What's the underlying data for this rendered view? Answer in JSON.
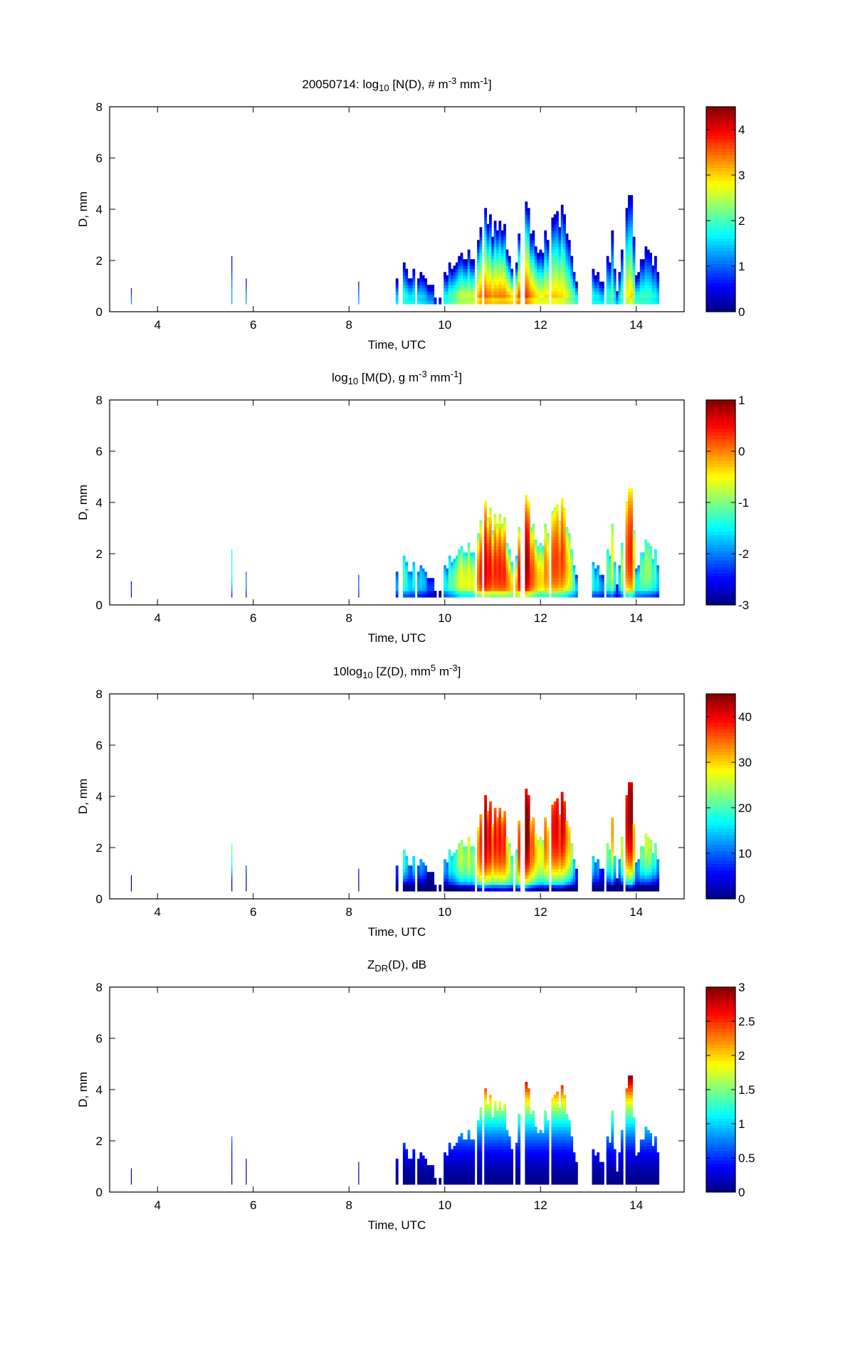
{
  "chart_data": {
    "type": "heatmap",
    "xlim": [
      3,
      15
    ],
    "ylim": [
      0,
      8
    ],
    "xticks": [
      4,
      6,
      8,
      10,
      12,
      14
    ],
    "yticks": [
      0,
      2,
      4,
      6,
      8
    ],
    "xlabel": "Time, UTC",
    "ylabel": "D, mm",
    "grid": false,
    "colormap": "jet",
    "colorbar_placement": "right",
    "panels": [
      {
        "field": "logN",
        "title": [
          {
            "t": "20050714: log",
            "s": ""
          },
          {
            "t": "10",
            "s": "sub"
          },
          {
            "t": " [N(D), # m",
            "s": ""
          },
          {
            "t": "-3",
            "s": "sup"
          },
          {
            "t": " mm",
            "s": ""
          },
          {
            "t": "-1",
            "s": "sup"
          },
          {
            "t": "]",
            "s": ""
          }
        ],
        "clim": [
          0,
          4.5
        ],
        "cticks": [
          "0",
          "1",
          "2",
          "3",
          "4"
        ]
      },
      {
        "field": "logM",
        "title": [
          {
            "t": "log",
            "s": ""
          },
          {
            "t": "10",
            "s": "sub"
          },
          {
            "t": " [M(D), g m",
            "s": ""
          },
          {
            "t": "-3",
            "s": "sup"
          },
          {
            "t": " mm",
            "s": ""
          },
          {
            "t": "-1",
            "s": "sup"
          },
          {
            "t": "]",
            "s": ""
          }
        ],
        "clim": [
          -3,
          1
        ],
        "cticks": [
          "-3",
          "-2",
          "-1",
          "0",
          "1"
        ]
      },
      {
        "field": "Z",
        "title": [
          {
            "t": "10log",
            "s": ""
          },
          {
            "t": "10",
            "s": "sub"
          },
          {
            "t": " [Z(D),  mm",
            "s": ""
          },
          {
            "t": "5",
            "s": "sup"
          },
          {
            "t": " m",
            "s": ""
          },
          {
            "t": "-3",
            "s": "sup"
          },
          {
            "t": "]",
            "s": ""
          }
        ],
        "clim": [
          0,
          45
        ],
        "cticks": [
          "0",
          "10",
          "20",
          "30",
          "40"
        ]
      },
      {
        "field": "ZDR",
        "title": [
          {
            "t": "Z",
            "s": ""
          },
          {
            "t": "DR",
            "s": "sub"
          },
          {
            "t": "(D), dB",
            "s": ""
          }
        ],
        "clim": [
          0,
          3
        ],
        "cticks": [
          "0",
          "0.5",
          "1",
          "1.5",
          "2",
          "2.5",
          "3"
        ]
      }
    ],
    "envelope_note_units": "time UTC h, max diameter mm, peak log10 N",
    "envelope": [
      [
        9.0,
        1.5,
        1.8
      ],
      [
        9.05,
        2.5,
        2.2
      ],
      [
        9.2,
        1.5,
        2.0
      ],
      [
        9.45,
        1.5,
        1.8
      ],
      [
        9.75,
        0.9,
        1.4
      ],
      [
        9.85,
        0,
        0
      ],
      [
        10.0,
        1.5,
        2.0
      ],
      [
        10.2,
        1.8,
        2.4
      ],
      [
        10.35,
        2.8,
        2.8
      ],
      [
        10.55,
        2.0,
        2.8
      ],
      [
        10.8,
        4.3,
        3.7
      ],
      [
        11.0,
        3.2,
        3.4
      ],
      [
        11.2,
        3.6,
        3.5
      ],
      [
        11.45,
        1.7,
        3.4
      ],
      [
        11.65,
        4.5,
        4.0
      ],
      [
        11.85,
        3.0,
        3.3
      ],
      [
        12.0,
        2.8,
        3.0
      ],
      [
        12.3,
        3.5,
        3.1
      ],
      [
        12.45,
        4.0,
        3.0
      ],
      [
        12.75,
        1.2,
        2.2
      ],
      [
        12.8,
        0,
        0
      ],
      [
        13.05,
        0,
        0
      ],
      [
        13.1,
        1.9,
        2.0
      ],
      [
        13.3,
        1.0,
        1.8
      ],
      [
        13.5,
        2.9,
        2.2
      ],
      [
        13.6,
        0.8,
        1.5
      ],
      [
        13.8,
        3.8,
        2.8
      ],
      [
        13.9,
        4.6,
        3.0
      ],
      [
        14.0,
        1.5,
        2.2
      ],
      [
        14.3,
        2.7,
        2.0
      ],
      [
        14.5,
        1.2,
        1.6
      ]
    ],
    "isolated": [
      [
        3.45,
        0.9,
        1.3
      ],
      [
        5.55,
        2.1,
        1.3
      ],
      [
        5.85,
        1.2,
        1.3
      ],
      [
        8.2,
        1.1,
        1.3
      ]
    ]
  }
}
